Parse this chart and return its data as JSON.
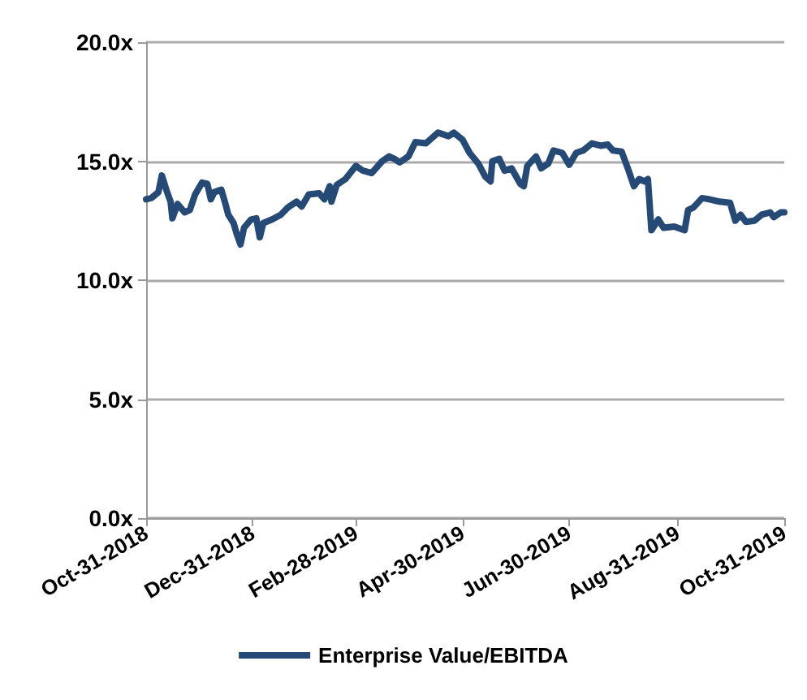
{
  "chart_data": {
    "type": "line",
    "x": [
      "2018-10-31",
      "2018-11-03",
      "2018-11-07",
      "2018-11-09",
      "2018-11-12",
      "2018-11-14",
      "2018-11-15",
      "2018-11-18",
      "2018-11-22",
      "2018-11-25",
      "2018-11-28",
      "2018-12-02",
      "2018-12-05",
      "2018-12-07",
      "2018-12-09",
      "2018-12-13",
      "2018-12-15",
      "2018-12-17",
      "2018-12-20",
      "2018-12-22",
      "2018-12-24",
      "2018-12-26",
      "2018-12-30",
      "2019-01-02",
      "2019-01-04",
      "2019-01-06",
      "2019-01-11",
      "2019-01-16",
      "2019-01-20",
      "2019-01-25",
      "2019-01-28",
      "2019-02-01",
      "2019-02-07",
      "2019-02-10",
      "2019-02-13",
      "2019-02-14",
      "2019-02-17",
      "2019-02-22",
      "2019-02-28",
      "2019-03-04",
      "2019-03-09",
      "2019-03-15",
      "2019-03-19",
      "2019-03-22",
      "2019-03-25",
      "2019-03-30",
      "2019-04-03",
      "2019-04-09",
      "2019-04-16",
      "2019-04-22",
      "2019-04-25",
      "2019-04-30",
      "2019-05-04",
      "2019-05-09",
      "2019-05-13",
      "2019-05-16",
      "2019-05-17",
      "2019-05-21",
      "2019-05-24",
      "2019-05-28",
      "2019-06-02",
      "2019-06-04",
      "2019-06-06",
      "2019-06-11",
      "2019-06-14",
      "2019-06-18",
      "2019-06-21",
      "2019-06-26",
      "2019-06-30",
      "2019-07-04",
      "2019-07-08",
      "2019-07-13",
      "2019-07-18",
      "2019-07-22",
      "2019-07-25",
      "2019-07-30",
      "2019-08-03",
      "2019-08-06",
      "2019-08-09",
      "2019-08-12",
      "2019-08-14",
      "2019-08-16",
      "2019-08-20",
      "2019-08-23",
      "2019-08-29",
      "2019-09-04",
      "2019-09-06",
      "2019-09-09",
      "2019-09-14",
      "2019-09-18",
      "2019-09-24",
      "2019-09-30",
      "2019-10-03",
      "2019-10-06",
      "2019-10-09",
      "2019-10-14",
      "2019-10-18",
      "2019-10-23",
      "2019-10-25",
      "2019-10-29",
      "2019-10-31"
    ],
    "series": [
      {
        "name": "Enterprise Value/EBITDA",
        "color": "#254a75",
        "values": [
          13.4,
          13.45,
          13.7,
          14.4,
          13.7,
          13.3,
          12.6,
          13.2,
          12.85,
          12.95,
          13.6,
          14.1,
          14.05,
          13.4,
          13.7,
          13.8,
          13.3,
          12.75,
          12.4,
          11.9,
          11.5,
          12.2,
          12.55,
          12.6,
          11.8,
          12.4,
          12.55,
          12.75,
          13.05,
          13.3,
          13.1,
          13.6,
          13.65,
          13.4,
          13.95,
          13.3,
          14.0,
          14.25,
          14.8,
          14.6,
          14.5,
          15.0,
          15.2,
          15.1,
          14.95,
          15.2,
          15.8,
          15.75,
          16.2,
          16.05,
          16.2,
          15.9,
          15.35,
          14.9,
          14.35,
          14.15,
          15.0,
          15.1,
          14.6,
          14.7,
          14.05,
          13.95,
          14.8,
          15.2,
          14.7,
          14.9,
          15.45,
          15.35,
          14.85,
          15.35,
          15.45,
          15.75,
          15.65,
          15.7,
          15.45,
          15.4,
          14.6,
          13.95,
          14.25,
          14.15,
          14.25,
          12.1,
          12.55,
          12.2,
          12.25,
          12.1,
          12.95,
          13.05,
          13.45,
          13.4,
          13.3,
          13.25,
          12.5,
          12.75,
          12.45,
          12.5,
          12.75,
          12.85,
          12.65,
          12.85,
          12.85
        ]
      }
    ],
    "xlim": [
      "2018-10-31",
      "2019-10-31"
    ],
    "xticks": [
      {
        "value": "2018-10-31",
        "label": "Oct-31-2018"
      },
      {
        "value": "2018-12-31",
        "label": "Dec-31-2018"
      },
      {
        "value": "2019-02-28",
        "label": "Feb-28-2019"
      },
      {
        "value": "2019-04-30",
        "label": "Apr-30-2019"
      },
      {
        "value": "2019-06-30",
        "label": "Jun-30-2019"
      },
      {
        "value": "2019-08-31",
        "label": "Aug-31-2019"
      },
      {
        "value": "2019-10-31",
        "label": "Oct-31-2019"
      }
    ],
    "ylim": [
      0,
      20
    ],
    "yticks": [
      {
        "value": 0,
        "label": "0.0x"
      },
      {
        "value": 5,
        "label": "5.0x"
      },
      {
        "value": 10,
        "label": "10.0x"
      },
      {
        "value": 15,
        "label": "15.0x"
      },
      {
        "value": 20,
        "label": "20.0x"
      }
    ],
    "grid": "y",
    "legend": "bottom",
    "marker": "none",
    "line_style": "solid"
  }
}
